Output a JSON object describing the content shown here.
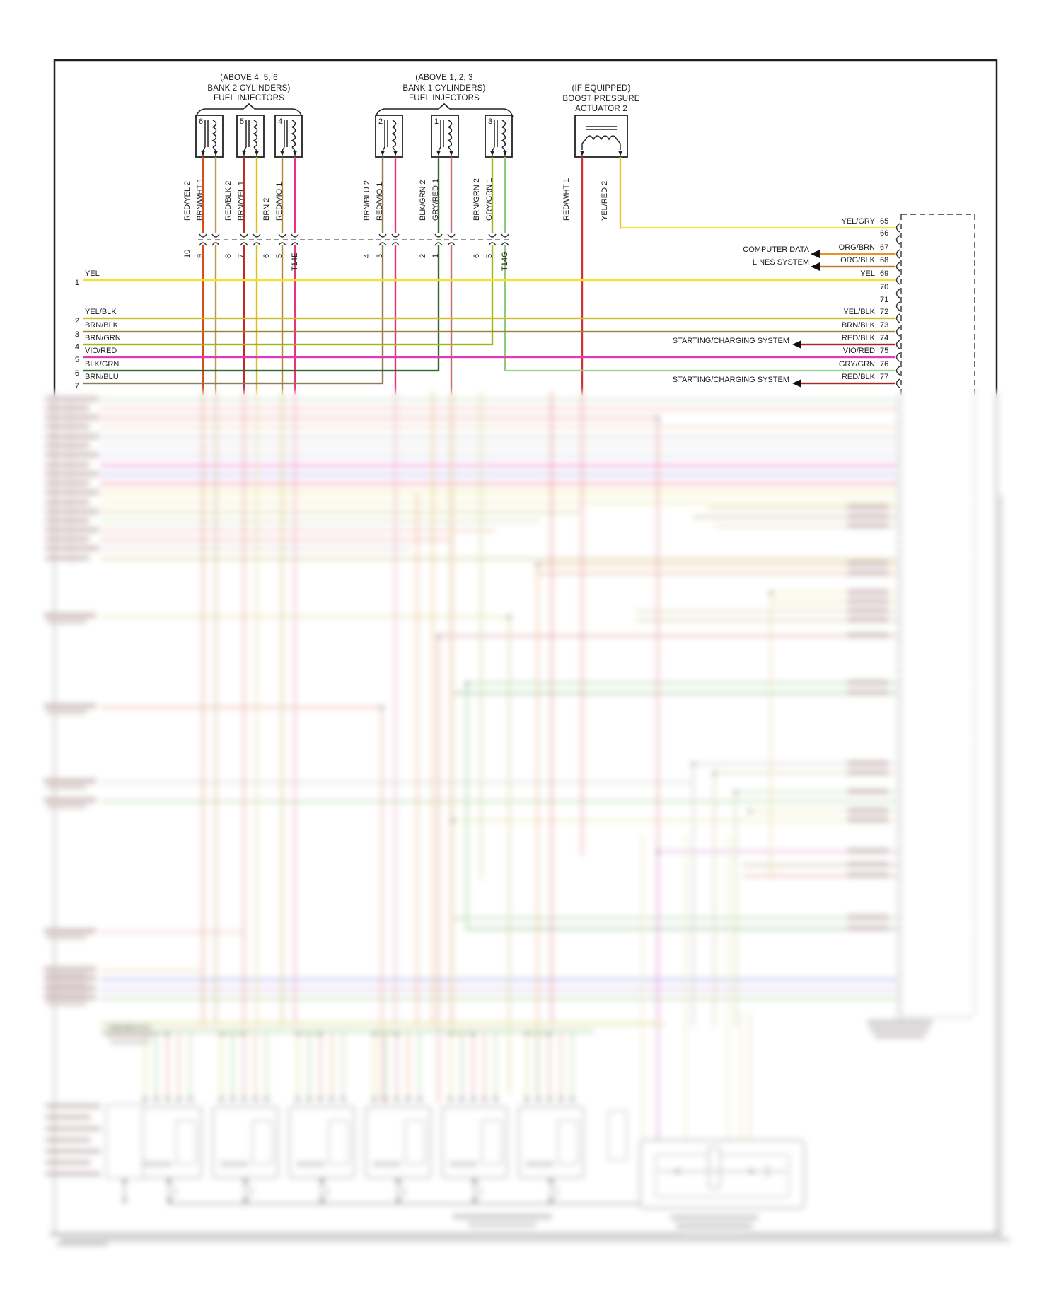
{
  "headers": {
    "group_a": [
      "(ABOVE 4, 5, 6",
      "BANK 2 CYLINDERS)",
      "FUEL INJECTORS"
    ],
    "group_b": [
      "(ABOVE 1, 2, 3",
      "BANK 1 CYLINDERS)",
      "FUEL INJECTORS"
    ],
    "actuator": [
      "(IF EQUIPPED)",
      "BOOST PRESSURE",
      "ACTUATOR 2"
    ]
  },
  "injectors": [
    {
      "num": "6",
      "wires": [
        {
          "label": "RED/YEL 2",
          "pin": "10"
        },
        {
          "label": "BRN/WHT 1",
          "pin": "9"
        }
      ]
    },
    {
      "num": "5",
      "wires": [
        {
          "label": "RED/BLK 2",
          "pin": "8"
        },
        {
          "label": "BRN/YEL 1",
          "pin": "7"
        }
      ]
    },
    {
      "num": "4",
      "wires": [
        {
          "label": "BRN 2",
          "pin": "6"
        },
        {
          "label": "RED/VIO 1",
          "pin": "5"
        }
      ]
    },
    {
      "num": "2",
      "wires": [
        {
          "label": "BRN/BLU 2",
          "pin": "4"
        },
        {
          "label": "RED/VIO 1",
          "pin": "3"
        }
      ]
    },
    {
      "num": "1",
      "wires": [
        {
          "label": "BLK/GRN 2",
          "pin": "2"
        },
        {
          "label": "GRY/RED 1",
          "pin": "1"
        }
      ]
    },
    {
      "num": "3",
      "wires": [
        {
          "label": "BRN/GRN 2",
          "pin": "6"
        },
        {
          "label": "GRY/GRN 1",
          "pin": "5"
        }
      ]
    }
  ],
  "actuator_wires": [
    {
      "label": "RED/WHT 1"
    },
    {
      "label": "YEL/RED 2"
    }
  ],
  "connectors": {
    "a": "T14E",
    "b": "T14G"
  },
  "left_pins": [
    {
      "num": "1",
      "label": "YEL"
    },
    {
      "num": "2",
      "label": "YEL/BLK"
    },
    {
      "num": "3",
      "label": "BRN/BLK"
    },
    {
      "num": "4",
      "label": "BRN/GRN"
    },
    {
      "num": "5",
      "label": "VIO/RED"
    },
    {
      "num": "6",
      "label": "BLK/GRN"
    },
    {
      "num": "7",
      "label": "BRN/BLU"
    }
  ],
  "right_pins": [
    {
      "label": "YEL/GRY",
      "num": "65"
    },
    {
      "label": "",
      "num": "66"
    },
    {
      "label": "ORG/BRN",
      "num": "67"
    },
    {
      "label": "ORG/BLK",
      "num": "68"
    },
    {
      "label": "YEL",
      "num": "69"
    },
    {
      "label": "",
      "num": "70"
    },
    {
      "label": "",
      "num": "71"
    },
    {
      "label": "YEL/BLK",
      "num": "72"
    },
    {
      "label": "BRN/BLK",
      "num": "73"
    },
    {
      "label": "RED/BLK",
      "num": "74"
    },
    {
      "label": "VIO/RED",
      "num": "75"
    },
    {
      "label": "GRY/GRN",
      "num": "76"
    },
    {
      "label": "RED/BLK",
      "num": "77"
    }
  ],
  "system_labels": {
    "computer_data": [
      "COMPUTER DATA",
      "LINES SYSTEM"
    ],
    "starting_charging_1": "STARTING/CHARGING SYSTEM",
    "starting_charging_2": "STARTING/CHARGING SYSTEM"
  },
  "colors": {
    "YEL": "#f2e42e",
    "YEL_GRY": "#ece24e",
    "YEL_BLK": "#ccbe2a",
    "ORG_BRN": "#e59329",
    "ORG_BLK": "#bd7a1f",
    "BRN_BLK": "#9c8038",
    "RED_BLK": "#a92421",
    "VIO_RED": "#e03ab8",
    "GRY_GRN": "#9ed392",
    "RED_YEL": "#d84e1c",
    "BRN_WHT": "#b99c4c",
    "RED_BLK_INJ": "#c22a28",
    "BRN_YEL": "#d9bc25",
    "BRN": "#b08c28",
    "RED_VIO": "#e8327e",
    "BRN_BLU": "#8f7d55",
    "BLK_GRN": "#2e6b2e",
    "GRY_RED": "#c96a72",
    "BRN_GRN": "#a3b41e",
    "GRY_GRN_LT": "#8fcc7a",
    "RED_WHT": "#d23432",
    "YEL_RED": "#e9c43a"
  }
}
